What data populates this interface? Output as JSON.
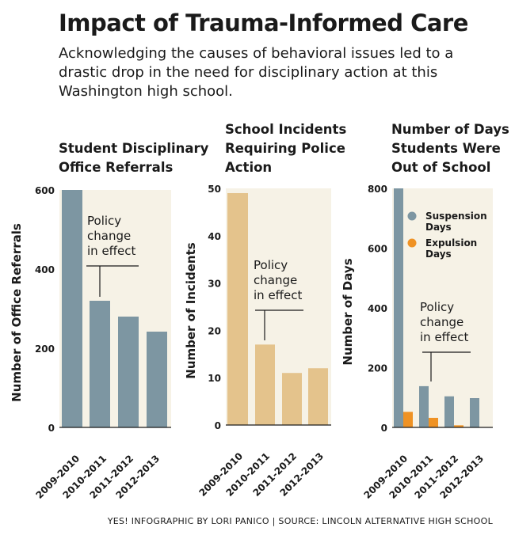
{
  "title": "Impact of Trauma-Informed Care",
  "subtitle": "Acknowledging the causes of behavioral issues led to a drastic drop in the need for disciplinary action at this Washington high school.",
  "credit": "YES! INFOGRAPHIC BY LORI PANICO | SOURCE: LINCOLN ALTERNATIVE HIGH SCHOOL",
  "colors": {
    "panel_background": "#f6f2e6",
    "referrals_bar": "#7d96a2",
    "incidents_bar": "#e4c38c",
    "suspension": "#7d96a2",
    "expulsion": "#ef9224"
  },
  "chart_data": [
    {
      "type": "bar",
      "title_lines": [
        "Student Disciplinary",
        "Office Referrals"
      ],
      "ylabel": "Number of Office Referrals",
      "ylim": [
        0,
        600
      ],
      "yticks": [
        0,
        200,
        400,
        600
      ],
      "categories": [
        "2009-2010",
        "2010-2011",
        "2011-2012",
        "2012-2013"
      ],
      "series": [
        {
          "values": [
            600,
            320,
            280,
            242
          ]
        }
      ],
      "annotation": {
        "lines": [
          "Policy",
          "change",
          "in effect"
        ]
      },
      "legend": [],
      "grid": false
    },
    {
      "type": "bar",
      "title_lines": [
        "School Incidents",
        "Requiring Police",
        "Action"
      ],
      "ylabel": "Number of Incidents",
      "ylim": [
        0,
        50
      ],
      "yticks": [
        0,
        10,
        20,
        30,
        40,
        50
      ],
      "categories": [
        "2009-2010",
        "2010-2011",
        "2011-2012",
        "2012-2013"
      ],
      "series": [
        {
          "values": [
            49,
            17,
            11,
            12
          ]
        }
      ],
      "annotation": {
        "lines": [
          "Policy",
          "change",
          "in effect"
        ]
      },
      "legend": [],
      "grid": false
    },
    {
      "type": "bar",
      "title_lines": [
        "Number of Days",
        "Students Were",
        "Out of School"
      ],
      "ylabel": "Number of Days",
      "ylim": [
        0,
        800
      ],
      "yticks": [
        0,
        200,
        400,
        600,
        800
      ],
      "categories": [
        "2009-2010",
        "2010-2011",
        "2011-2012",
        "2012-2013"
      ],
      "series": [
        {
          "name": "Suspension Days",
          "values": [
            800,
            138,
            104,
            98
          ]
        },
        {
          "name": "Expulsion Days",
          "values": [
            52,
            32,
            7,
            0
          ]
        }
      ],
      "annotation": {
        "lines": [
          "Policy",
          "change",
          "in effect"
        ]
      },
      "legend": [
        {
          "lines": [
            "Suspension",
            "Days"
          ]
        },
        {
          "lines": [
            "Expulsion",
            "Days"
          ]
        }
      ],
      "legend_position": "top-right",
      "grid": false
    }
  ]
}
